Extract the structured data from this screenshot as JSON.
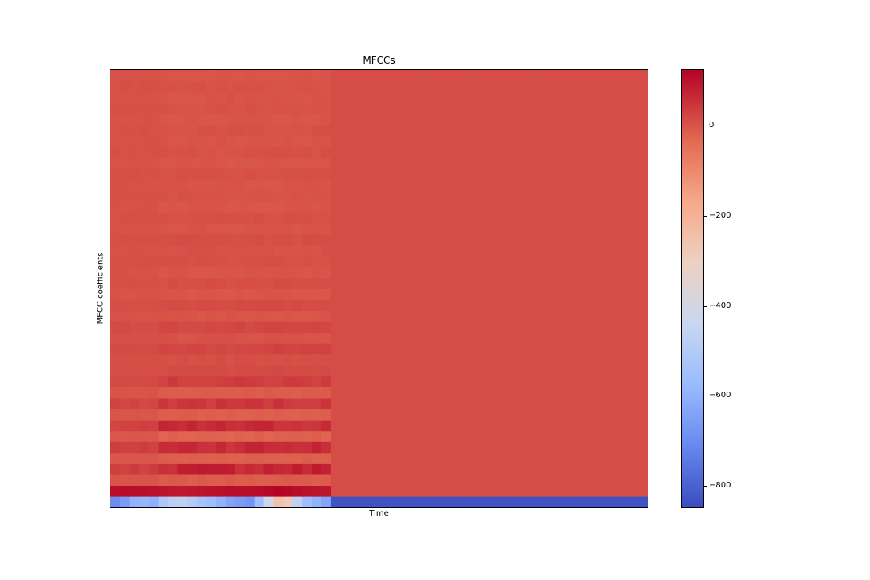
{
  "chart_data": {
    "type": "heatmap",
    "title": "MFCCs",
    "xlabel": "Time",
    "ylabel": "MFCC coefficients",
    "colormap": "coolwarm",
    "colorbar": {
      "vmin": -850,
      "vmax": 125,
      "ticks": [
        0,
        -200,
        -400,
        -600,
        -800
      ],
      "tick_labels": [
        "0",
        "−200",
        "−400",
        "−600",
        "−800"
      ]
    },
    "n_coefficients": 40,
    "n_frames": 56,
    "active_frames": 23,
    "coefficient_profiles": {
      "silent_value": 12,
      "silent_c0": -835,
      "active_c0": [
        -700,
        -660,
        -600,
        -590,
        -610,
        -520,
        -480,
        -470,
        -500,
        -540,
        -560,
        -600,
        -640,
        -660,
        -680,
        -560,
        -420,
        -250,
        -280,
        -470,
        -560,
        -600,
        -640
      ],
      "active_c1": [
        110,
        112,
        110,
        108,
        105,
        100,
        96,
        92,
        95,
        100,
        104,
        108,
        112,
        110,
        108,
        112,
        118,
        125,
        120,
        110,
        104,
        100,
        98
      ],
      "active_mean_by_coefficient": [
        -560,
        108,
        -10,
        75,
        -15,
        65,
        -20,
        60,
        -15,
        45,
        -10,
        35,
        15,
        10,
        25,
        5,
        20,
        0,
        15,
        0,
        10,
        0,
        8,
        5,
        10,
        2,
        8,
        0,
        6,
        2,
        8,
        0,
        5,
        2,
        6,
        0,
        5,
        2,
        5,
        0
      ]
    }
  }
}
